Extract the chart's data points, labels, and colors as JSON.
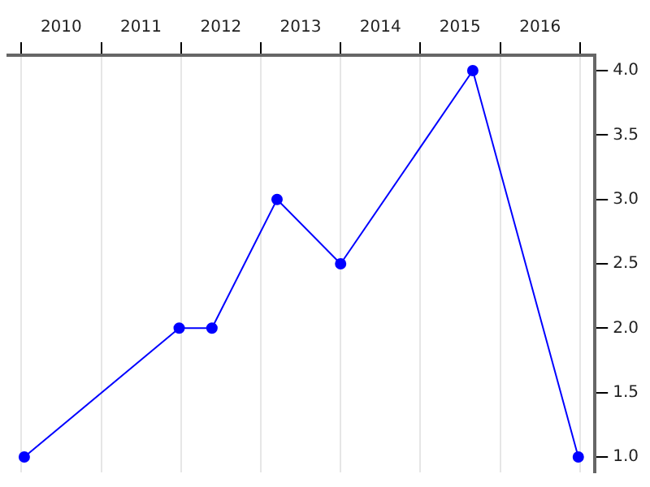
{
  "chart_data": {
    "type": "line",
    "x": [
      "2010-01-14",
      "2011-12-24",
      "2012-05-22",
      "2013-03-16",
      "2014-01-01",
      "2015-08-29",
      "2016-12-24"
    ],
    "series": [
      {
        "color": "#0000ff",
        "values": [
          1,
          2,
          2,
          3,
          2.5,
          4,
          1
        ]
      }
    ],
    "xlim": [
      "2009-11-01",
      "2017-03-10"
    ],
    "xticks": [
      {
        "value": "2010-01-01",
        "label": null
      },
      {
        "value": "2010-07-02",
        "label": "2010"
      },
      {
        "value": "2011-01-01",
        "label": null
      },
      {
        "value": "2011-07-02",
        "label": "2011"
      },
      {
        "value": "2012-01-01",
        "label": null
      },
      {
        "value": "2012-07-02",
        "label": "2012"
      },
      {
        "value": "2013-01-01",
        "label": null
      },
      {
        "value": "2013-07-02",
        "label": "2013"
      },
      {
        "value": "2014-01-01",
        "label": null
      },
      {
        "value": "2014-07-02",
        "label": "2014"
      },
      {
        "value": "2015-01-01",
        "label": null
      },
      {
        "value": "2015-07-02",
        "label": "2015"
      },
      {
        "value": "2016-01-01",
        "label": null
      },
      {
        "value": "2016-07-02",
        "label": "2016"
      },
      {
        "value": "2017-01-01",
        "label": null
      }
    ],
    "ylim": [
      0.88,
      4.12
    ],
    "yticks": [
      {
        "value": 1,
        "label": "1.0"
      },
      {
        "value": 1.5,
        "label": "1.5"
      },
      {
        "value": 2,
        "label": "2.0"
      },
      {
        "value": 2.5,
        "label": "2.5"
      },
      {
        "value": 3,
        "label": "3.0"
      },
      {
        "value": 3.5,
        "label": "3.5"
      },
      {
        "value": 4,
        "label": "4.0"
      }
    ],
    "grid": "x",
    "legend": false,
    "marker": "circle",
    "line_style": "solid"
  }
}
